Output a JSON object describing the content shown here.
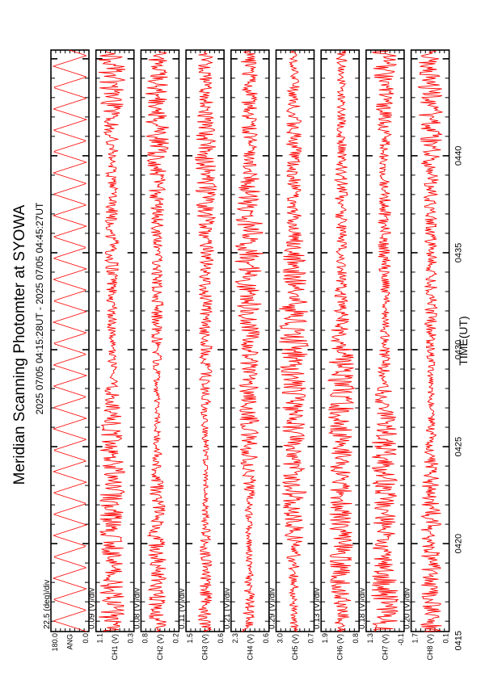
{
  "title": "Meridian Scanning Photomter at SYOWA",
  "time_range": "2025 07/05 04:15:28UT - 2025 07/05 04:45:27UT",
  "chart_data": {
    "type": "line",
    "title": "Meridian Scanning Photomter at SYOWA",
    "subtitle": "2025 07/05 04:15:28UT - 2025 07/05 04:45:27UT",
    "xlabel": "TIME(UT)",
    "x_ticks": [
      "0415",
      "0420",
      "0425",
      "0430",
      "0435",
      "0440"
    ],
    "xlim": [
      "04:15:28",
      "04:45:27"
    ],
    "line_color": "#ff0000",
    "grid": false,
    "panels": [
      {
        "scale": "22.5 (deg)/div",
        "ylabel": "ANG",
        "ytop": "180.0",
        "ybottom": "0.0",
        "ylim": [
          0.0,
          180.0
        ]
      },
      {
        "scale": "0.09 (V)/div",
        "ylabel": "CH1 (V)",
        "ytop": "1.1",
        "ybottom": "0.3",
        "ylim": [
          0.3,
          1.1
        ]
      },
      {
        "scale": "0.08 (V)/div",
        "ylabel": "CH2 (V)",
        "ytop": "0.8",
        "ybottom": "0.2",
        "ylim": [
          0.2,
          0.8
        ]
      },
      {
        "scale": "0.11 (V)/div",
        "ylabel": "CH3 (V)",
        "ytop": "1.5",
        "ybottom": "0.6",
        "ylim": [
          0.6,
          1.5
        ]
      },
      {
        "scale": "0.21 (V)/div",
        "ylabel": "CH4 (V)",
        "ytop": "2.3",
        "ybottom": "0.6",
        "ylim": [
          0.6,
          2.3
        ]
      },
      {
        "scale": "0.29 (V)/div",
        "ylabel": "CH5 (V)",
        "ytop": "3.0",
        "ybottom": "0.7",
        "ylim": [
          0.7,
          3.0
        ]
      },
      {
        "scale": "0.13 (V)/div",
        "ylabel": "CH6 (V)",
        "ytop": "1.9",
        "ybottom": "0.8",
        "ylim": [
          0.8,
          1.9
        ]
      },
      {
        "scale": "0.18 (V)/div",
        "ylabel": "CH7 (V)",
        "ytop": "1.3",
        "ybottom": "-0.1",
        "ylim": [
          -0.1,
          1.3
        ]
      },
      {
        "scale": "0.20 (V)/div",
        "ylabel": "CH8 (V)",
        "ytop": "1.7",
        "ybottom": "0.1",
        "ylim": [
          0.1,
          1.7
        ]
      }
    ]
  }
}
